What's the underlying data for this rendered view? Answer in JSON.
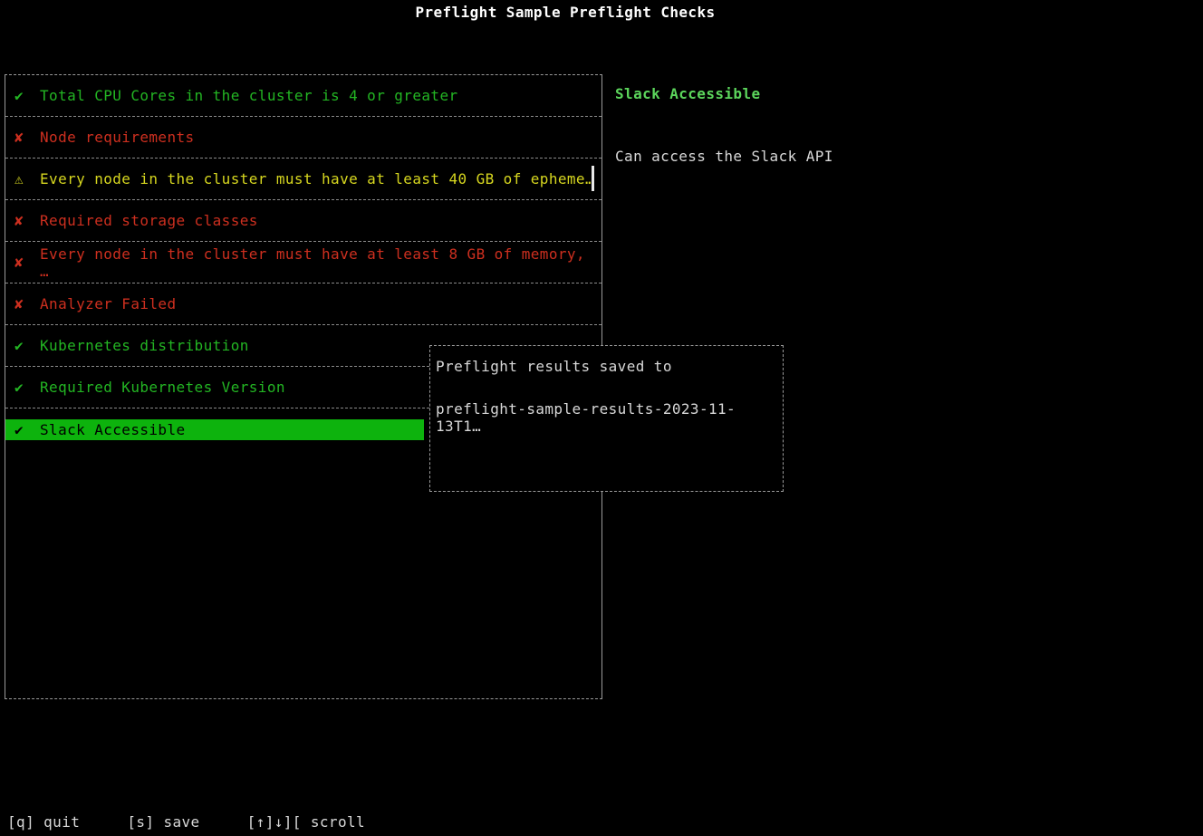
{
  "title": "Preflight Sample Preflight Checks",
  "colors": {
    "background": "#000000",
    "pass_green": "#23b523",
    "fail_red": "#cd2f1f",
    "warn_yellow": "#d6d61f",
    "selected_bg": "#0db30d",
    "detail_title_green": "#5cd65c",
    "text_gray": "#d8d8d8",
    "border_gray": "#9a9a9a"
  },
  "icons": {
    "check": "✔",
    "cross": "✘",
    "warn": "⚠"
  },
  "checklist": {
    "items": [
      {
        "icon": "check",
        "status": "pass",
        "selected": false,
        "label": "Total CPU Cores in the cluster is 4 or greater"
      },
      {
        "icon": "cross",
        "status": "fail",
        "selected": false,
        "label": "Node requirements"
      },
      {
        "icon": "warn",
        "status": "warn",
        "selected": false,
        "label": "Every node in the cluster must have at least 40 GB of epheme…"
      },
      {
        "icon": "cross",
        "status": "fail",
        "selected": false,
        "label": "Required storage classes"
      },
      {
        "icon": "cross",
        "status": "fail",
        "selected": false,
        "label": "Every node in the cluster must have at least 8 GB of memory, …"
      },
      {
        "icon": "cross",
        "status": "fail",
        "selected": false,
        "label": "Analyzer Failed"
      },
      {
        "icon": "check",
        "status": "pass",
        "selected": false,
        "label": "Kubernetes distribution"
      },
      {
        "icon": "check",
        "status": "pass",
        "selected": false,
        "label": "Required Kubernetes Version"
      },
      {
        "icon": "check",
        "status": "pass",
        "selected": true,
        "label": "Slack Accessible"
      }
    ]
  },
  "detail": {
    "title": "Slack Accessible",
    "message": "Can access the Slack API"
  },
  "dialog": {
    "line1": "Preflight results saved to",
    "line2": "preflight-sample-results-2023-11-13T1…"
  },
  "statusbar": {
    "quit": "[q] quit",
    "save": "[s] save",
    "scroll": "[↑]↓][ scroll"
  }
}
